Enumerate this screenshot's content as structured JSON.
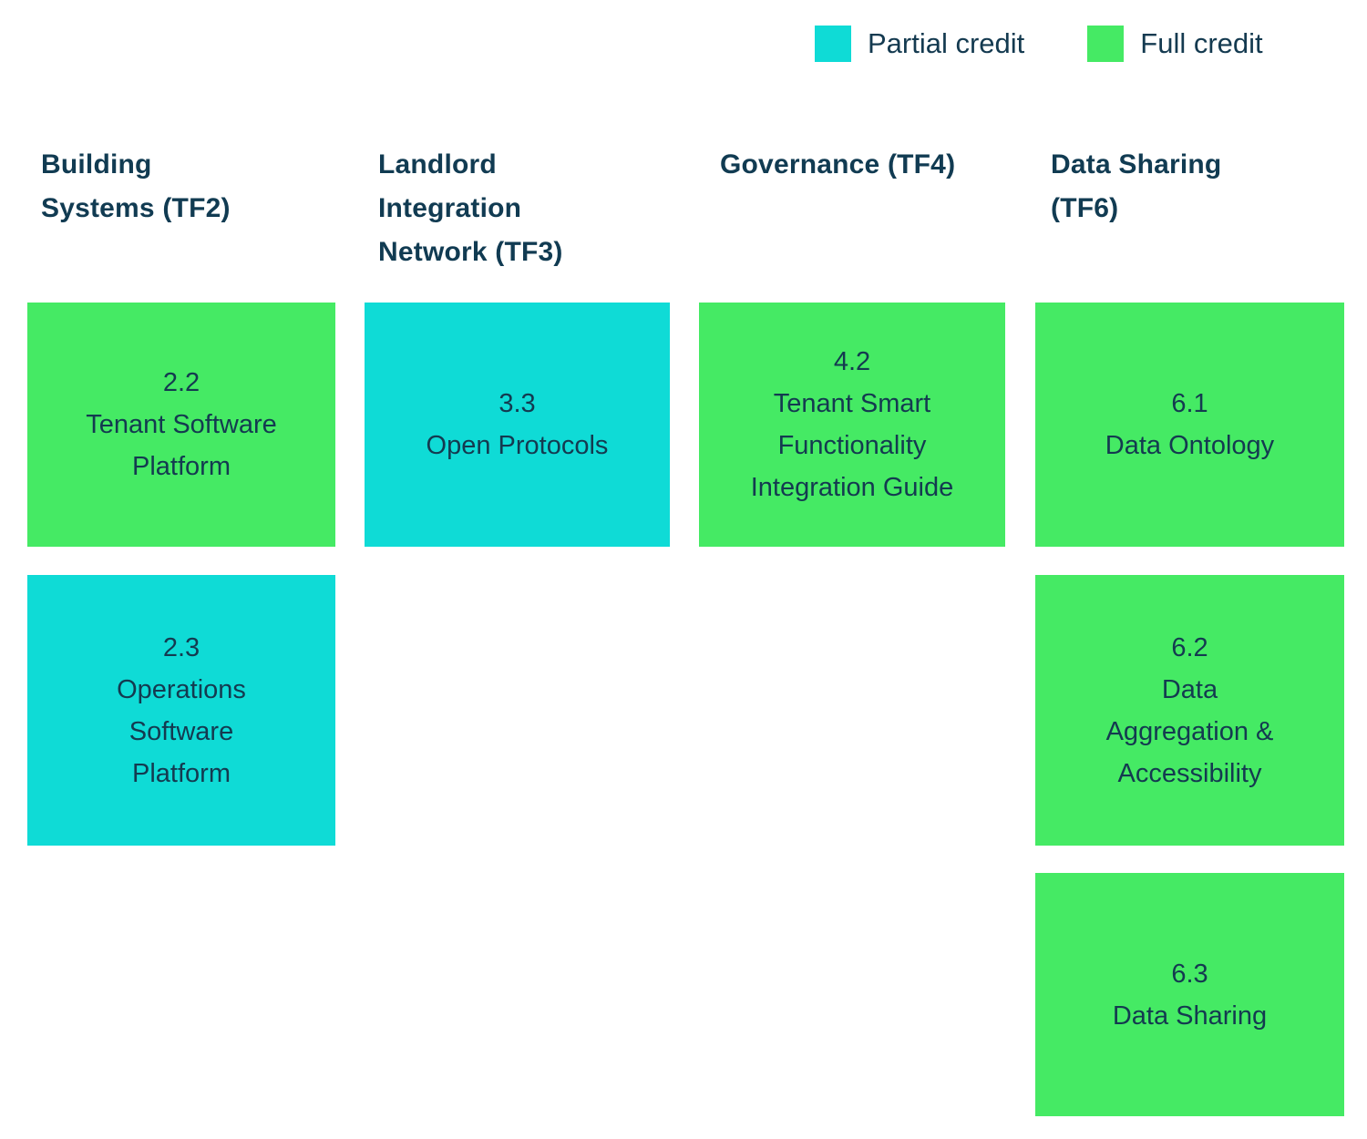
{
  "palette": {
    "partial_credit": "#0FDBD6",
    "full_credit": "#45EA64",
    "text": "#143A50"
  },
  "legend": {
    "partial": {
      "label": "Partial credit",
      "color": "#0FDBD6"
    },
    "full": {
      "label": "Full credit",
      "color": "#45EA64"
    }
  },
  "columns": [
    {
      "title": "Building\nSystems (TF2)",
      "boxes": [
        {
          "code": "2.2",
          "label": "Tenant Software\nPlatform",
          "credit": "Full credit",
          "color": "#45EA64"
        },
        {
          "code": "2.3",
          "label": "Operations\nSoftware\nPlatform",
          "credit": "Partial credit",
          "color": "#0FDBD6"
        }
      ]
    },
    {
      "title": "Landlord\nIntegration\nNetwork (TF3)",
      "boxes": [
        {
          "code": "3.3",
          "label": "Open Protocols",
          "credit": "Partial credit",
          "color": "#0FDBD6"
        }
      ]
    },
    {
      "title": "Governance (TF4)",
      "boxes": [
        {
          "code": "4.2",
          "label": "Tenant Smart\nFunctionality\nIntegration Guide",
          "credit": "Full credit",
          "color": "#45EA64"
        }
      ]
    },
    {
      "title": "Data Sharing\n(TF6)",
      "boxes": [
        {
          "code": "6.1",
          "label": "Data Ontology",
          "credit": "Full credit",
          "color": "#45EA64"
        },
        {
          "code": "6.2",
          "label": "Data\nAggregation &\nAccessibility",
          "credit": "Full credit",
          "color": "#45EA64"
        },
        {
          "code": "6.3",
          "label": "Data Sharing",
          "credit": "Full credit",
          "color": "#45EA64"
        }
      ]
    }
  ]
}
